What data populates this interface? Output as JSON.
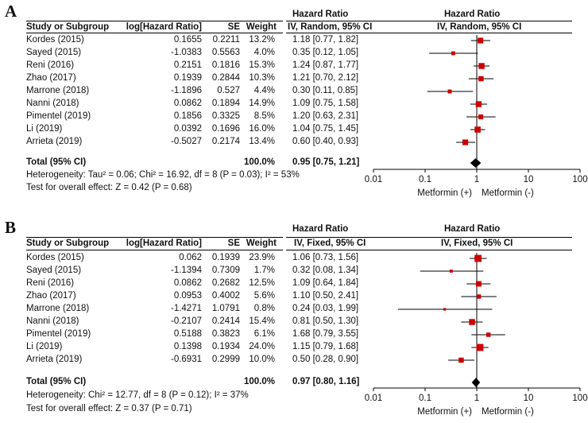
{
  "chart_data": [
    {
      "type": "forest",
      "panel": "A",
      "headers": {
        "study": "Study or Subgroup",
        "loghr": "log[Hazard Ratio]",
        "se": "SE",
        "weight": "Weight",
        "hr_top": "Hazard Ratio",
        "hr_sub": "IV, Random, 95% CI",
        "plot_top": "Hazard Ratio",
        "plot_sub": "IV, Random, 95% CI"
      },
      "studies": [
        {
          "name": "Kordes (2015)",
          "loghr": "0.1655",
          "se": "0.2211",
          "weight": "13.2%",
          "ci_text": "1.18 [0.77, 1.82]",
          "hr": 1.18,
          "lo": 0.77,
          "hi": 1.82,
          "w": 13.2
        },
        {
          "name": "Sayed (2015)",
          "loghr": "-1.0383",
          "se": "0.5563",
          "weight": "4.0%",
          "ci_text": "0.35 [0.12, 1.05]",
          "hr": 0.35,
          "lo": 0.12,
          "hi": 1.05,
          "w": 4.0
        },
        {
          "name": "Reni (2016)",
          "loghr": "0.2151",
          "se": "0.1816",
          "weight": "15.3%",
          "ci_text": "1.24 [0.87, 1.77]",
          "hr": 1.24,
          "lo": 0.87,
          "hi": 1.77,
          "w": 15.3
        },
        {
          "name": "Zhao (2017)",
          "loghr": "0.1939",
          "se": "0.2844",
          "weight": "10.3%",
          "ci_text": "1.21 [0.70, 2.12]",
          "hr": 1.21,
          "lo": 0.7,
          "hi": 2.12,
          "w": 10.3
        },
        {
          "name": "Marrone (2018)",
          "loghr": "-1.1896",
          "se": "0.527",
          "weight": "4.4%",
          "ci_text": "0.30 [0.11, 0.85]",
          "hr": 0.3,
          "lo": 0.11,
          "hi": 0.85,
          "w": 4.4
        },
        {
          "name": "Nanni (2018)",
          "loghr": "0.0862",
          "se": "0.1894",
          "weight": "14.9%",
          "ci_text": "1.09 [0.75, 1.58]",
          "hr": 1.09,
          "lo": 0.75,
          "hi": 1.58,
          "w": 14.9
        },
        {
          "name": "Pimentel (2019)",
          "loghr": "0.1856",
          "se": "0.3325",
          "weight": "8.5%",
          "ci_text": "1.20 [0.63, 2.31]",
          "hr": 1.2,
          "lo": 0.63,
          "hi": 2.31,
          "w": 8.5
        },
        {
          "name": "Li (2019)",
          "loghr": "0.0392",
          "se": "0.1696",
          "weight": "16.0%",
          "ci_text": "1.04 [0.75, 1.45]",
          "hr": 1.04,
          "lo": 0.75,
          "hi": 1.45,
          "w": 16.0
        },
        {
          "name": "Arrieta (2019)",
          "loghr": "-0.5027",
          "se": "0.2174",
          "weight": "13.4%",
          "ci_text": "0.60 [0.40, 0.93]",
          "hr": 0.6,
          "lo": 0.4,
          "hi": 0.93,
          "w": 13.4
        }
      ],
      "total": {
        "label": "Total (95% CI)",
        "weight": "100.0%",
        "ci_text": "0.95 [0.75, 1.21]",
        "hr": 0.95,
        "lo": 0.75,
        "hi": 1.21
      },
      "heterogeneity": "Heterogeneity: Tau² = 0.06; Chi² = 16.92, df = 8 (P = 0.03); I² = 53%",
      "overall_effect": "Test for overall effect: Z = 0.42 (P = 0.68)",
      "x_scale": "log",
      "xlim": [
        0.01,
        100
      ],
      "x_ticks": [
        "0.01",
        "0.1",
        "1",
        "10",
        "100"
      ],
      "favours_left": "Metformin (+)",
      "favours_right": "Metformin (-)",
      "marker_color": "#cc0000"
    },
    {
      "type": "forest",
      "panel": "B",
      "headers": {
        "study": "Study or Subgroup",
        "loghr": "log[Hazard Ratio]",
        "se": "SE",
        "weight": "Weight",
        "hr_top": "Hazard Ratio",
        "hr_sub": "IV, Fixed, 95% CI",
        "plot_top": "Hazard Ratio",
        "plot_sub": "IV, Fixed, 95% CI"
      },
      "studies": [
        {
          "name": "Kordes (2015)",
          "loghr": "0.062",
          "se": "0.1939",
          "weight": "23.9%",
          "ci_text": "1.06 [0.73, 1.56]",
          "hr": 1.06,
          "lo": 0.73,
          "hi": 1.56,
          "w": 23.9
        },
        {
          "name": "Sayed (2015)",
          "loghr": "-1.1394",
          "se": "0.7309",
          "weight": "1.7%",
          "ci_text": "0.32 [0.08, 1.34]",
          "hr": 0.32,
          "lo": 0.08,
          "hi": 1.34,
          "w": 1.7
        },
        {
          "name": "Reni (2016)",
          "loghr": "0.0862",
          "se": "0.2682",
          "weight": "12.5%",
          "ci_text": "1.09 [0.64, 1.84]",
          "hr": 1.09,
          "lo": 0.64,
          "hi": 1.84,
          "w": 12.5
        },
        {
          "name": "Zhao (2017)",
          "loghr": "0.0953",
          "se": "0.4002",
          "weight": "5.6%",
          "ci_text": "1.10 [0.50, 2.41]",
          "hr": 1.1,
          "lo": 0.5,
          "hi": 2.41,
          "w": 5.6
        },
        {
          "name": "Marrone (2018)",
          "loghr": "-1.4271",
          "se": "1.0791",
          "weight": "0.8%",
          "ci_text": "0.24 [0.03, 1.99]",
          "hr": 0.24,
          "lo": 0.03,
          "hi": 1.99,
          "w": 0.8
        },
        {
          "name": "Nanni (2018)",
          "loghr": "-0.2107",
          "se": "0.2414",
          "weight": "15.4%",
          "ci_text": "0.81 [0.50, 1.30]",
          "hr": 0.81,
          "lo": 0.5,
          "hi": 1.3,
          "w": 15.4
        },
        {
          "name": "Pimentel (2019)",
          "loghr": "0.5188",
          "se": "0.3823",
          "weight": "6.1%",
          "ci_text": "1.68 [0.79, 3.55]",
          "hr": 1.68,
          "lo": 0.79,
          "hi": 3.55,
          "w": 6.1
        },
        {
          "name": "Li (2019)",
          "loghr": "0.1398",
          "se": "0.1934",
          "weight": "24.0%",
          "ci_text": "1.15 [0.79, 1.68]",
          "hr": 1.15,
          "lo": 0.79,
          "hi": 1.68,
          "w": 24.0
        },
        {
          "name": "Arrieta (2019)",
          "loghr": "-0.6931",
          "se": "0.2999",
          "weight": "10.0%",
          "ci_text": "0.50 [0.28, 0.90]",
          "hr": 0.5,
          "lo": 0.28,
          "hi": 0.9,
          "w": 10.0
        }
      ],
      "total": {
        "label": "Total (95% CI)",
        "weight": "100.0%",
        "ci_text": "0.97 [0.80, 1.16]",
        "hr": 0.97,
        "lo": 0.8,
        "hi": 1.16
      },
      "heterogeneity": "Heterogeneity: Chi² = 12.77, df = 8 (P = 0.12); I² = 37%",
      "overall_effect": "Test for overall effect: Z = 0.37 (P = 0.71)",
      "x_scale": "log",
      "xlim": [
        0.01,
        100
      ],
      "x_ticks": [
        "0.01",
        "0.1",
        "1",
        "10",
        "100"
      ],
      "favours_left": "Metformin (+)",
      "favours_right": "Metformin (-)",
      "marker_color": "#cc0000"
    }
  ]
}
